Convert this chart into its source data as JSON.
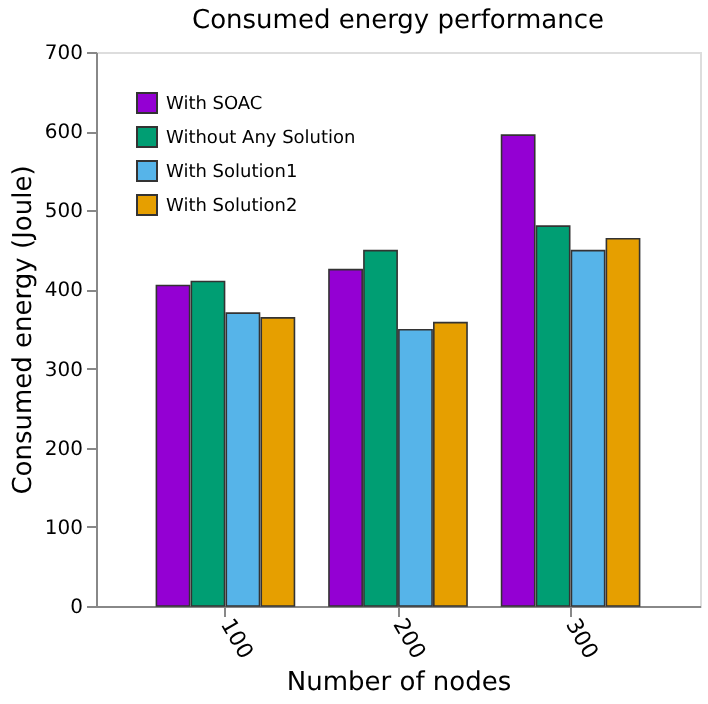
{
  "chart_data": {
    "type": "bar",
    "title": "Consumed energy performance",
    "xlabel": "Number of nodes",
    "ylabel": "Consumed energy (Joule)",
    "categories": [
      "100",
      "200",
      "300"
    ],
    "series": [
      {
        "name": "With SOAC",
        "color": "#9400d3",
        "values": [
          405,
          425,
          595
        ]
      },
      {
        "name": "Without Any Solution",
        "color": "#009e73",
        "values": [
          410,
          449,
          480
        ]
      },
      {
        "name": "With Solution1",
        "color": "#56b4e9",
        "values": [
          370,
          349,
          449
        ]
      },
      {
        "name": "With Solution2",
        "color": "#e69f00",
        "values": [
          364,
          358,
          464
        ]
      }
    ],
    "ylim": [
      0,
      700
    ],
    "yticks": [
      0,
      100,
      200,
      300,
      400,
      500,
      600,
      700
    ],
    "grid": false,
    "legend": "top left"
  }
}
